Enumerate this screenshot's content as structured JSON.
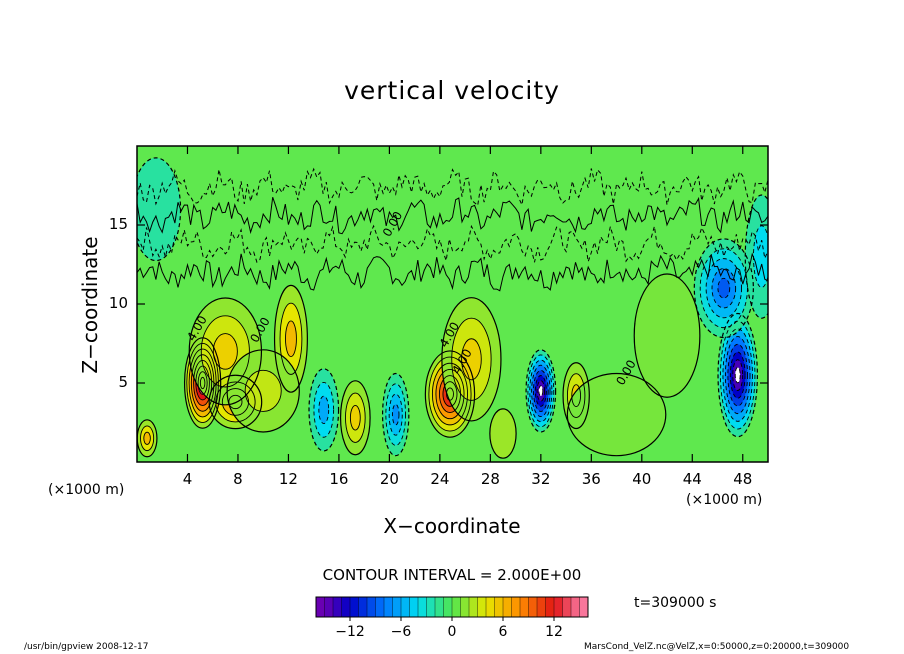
{
  "chart_data": {
    "type": "heatmap",
    "title": "vertical velocity",
    "xlabel": "X−coordinate",
    "ylabel": "Z−coordinate",
    "x_units_left": "(×1000 m)",
    "x_units_right": "(×1000 m)",
    "xlim": [
      0,
      50
    ],
    "ylim": [
      0,
      20
    ],
    "x_ticks": [
      4,
      8,
      12,
      16,
      20,
      24,
      28,
      32,
      36,
      40,
      44,
      48
    ],
    "y_ticks": [
      5,
      10,
      15
    ],
    "contour_labels": [
      "0.00",
      "4.00"
    ],
    "contour_interval_text": "CONTOUR INTERVAL = 2.000E+00",
    "colorbar": {
      "min": -16,
      "max": 16,
      "ticks": [
        "−12",
        "−6",
        "0",
        "6",
        "12"
      ],
      "tick_values": [
        -12,
        -6,
        0,
        6,
        12
      ]
    },
    "features": [
      {
        "x": 5.2,
        "z": 5.0,
        "value": 16,
        "sx": 1.1,
        "sz": 2.2
      },
      {
        "x": 7.8,
        "z": 3.8,
        "value": 8,
        "sx": 1.6,
        "sz": 1.3
      },
      {
        "x": 7.0,
        "z": 7.0,
        "value": 5,
        "sx": 2.2,
        "sz": 2.6
      },
      {
        "x": 12.2,
        "z": 7.8,
        "value": 6,
        "sx": 1.0,
        "sz": 2.6
      },
      {
        "x": 10.0,
        "z": 4.5,
        "value": 3,
        "sx": 2.2,
        "sz": 2.0
      },
      {
        "x": 0.8,
        "z": 1.5,
        "value": 6,
        "sx": 0.6,
        "sz": 0.9
      },
      {
        "x": 14.8,
        "z": 3.3,
        "value": -6,
        "sx": 0.9,
        "sz": 2.0
      },
      {
        "x": 17.3,
        "z": 2.8,
        "value": 5,
        "sx": 0.9,
        "sz": 1.8
      },
      {
        "x": 20.5,
        "z": 3.0,
        "value": -7,
        "sx": 0.8,
        "sz": 2.0
      },
      {
        "x": 24.8,
        "z": 4.3,
        "value": 13,
        "sx": 1.5,
        "sz": 2.1
      },
      {
        "x": 26.5,
        "z": 6.5,
        "value": 5,
        "sx": 1.8,
        "sz": 3.0
      },
      {
        "x": 29.0,
        "z": 1.8,
        "value": 2,
        "sx": 0.8,
        "sz": 1.2
      },
      {
        "x": 32.0,
        "z": 4.5,
        "value": -16,
        "sx": 0.9,
        "sz": 2.0
      },
      {
        "x": 34.8,
        "z": 4.2,
        "value": 5,
        "sx": 0.8,
        "sz": 1.6
      },
      {
        "x": 47.6,
        "z": 5.5,
        "value": -16,
        "sx": 1.2,
        "sz": 3.0
      },
      {
        "x": 46.5,
        "z": 11.0,
        "value": -9,
        "sx": 1.8,
        "sz": 2.4
      },
      {
        "x": 49.5,
        "z": 13.0,
        "value": -4,
        "sx": 1.0,
        "sz": 3.0
      },
      {
        "x": 38.0,
        "z": 3.0,
        "value": 1,
        "sx": 3.0,
        "sz": 2.0
      },
      {
        "x": 1.5,
        "z": 16.0,
        "value": -2,
        "sx": 1.5,
        "sz": 2.5
      },
      {
        "x": 42.0,
        "z": 8.0,
        "value": 1,
        "sx": 2.0,
        "sz": 3.0
      }
    ]
  },
  "info": {
    "time_label": "t=309000 s",
    "footer_left": "/usr/bin/gpview   2008-12-17",
    "footer_right": "MarsCond_VelZ.nc@VelZ,x=0:50000,z=0:20000,t=309000"
  }
}
